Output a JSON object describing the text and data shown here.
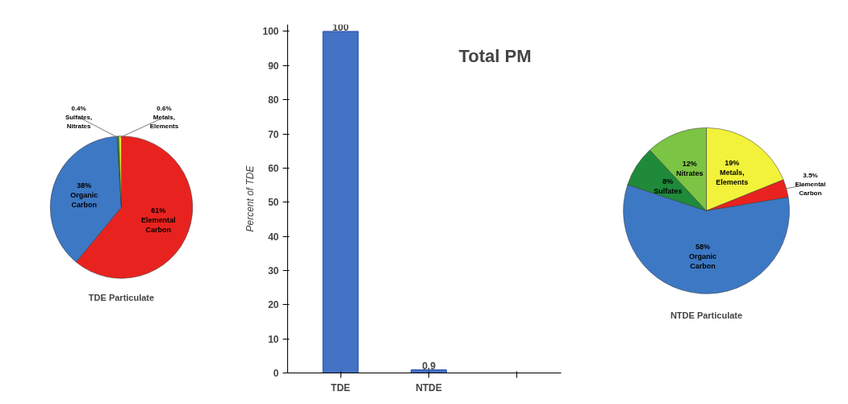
{
  "chart_data": [
    {
      "type": "pie",
      "title": "TDE Particulate",
      "categories": [
        "Elemental Carbon",
        "Organic Carbon",
        "Sulfates, Nitrates",
        "Metals, Elements"
      ],
      "values": [
        61,
        38,
        0.4,
        0.6
      ],
      "value_labels": [
        "61%",
        "38%",
        "0.4%",
        "0.6%"
      ],
      "colors": [
        "#e8231f",
        "#3d78c4",
        "#2e8b2e",
        "#e8e82a"
      ]
    },
    {
      "type": "bar",
      "title": "Total PM",
      "ylabel": "Percent of TDE",
      "categories": [
        "TDE",
        "NTDE",
        null
      ],
      "values": [
        100,
        0.9,
        null
      ],
      "color": "#4472c4",
      "ylim": [
        0,
        102
      ],
      "yticks": [
        0,
        10,
        20,
        30,
        40,
        50,
        60,
        70,
        80,
        90,
        100
      ],
      "data_labels": true
    },
    {
      "type": "pie",
      "title": "NTDE Particulate",
      "categories": [
        "Metals, Elements",
        "Elemental Carbon",
        "Organic Carbon",
        "Sulfates",
        "Nitrates"
      ],
      "values": [
        19,
        3.5,
        58,
        8,
        12
      ],
      "value_labels": [
        "19%",
        "3.5%",
        "58%",
        "8%",
        "12%"
      ],
      "colors": [
        "#f2f23a",
        "#e8231f",
        "#3d78c4",
        "#1f8a3a",
        "#7cc444"
      ]
    }
  ]
}
